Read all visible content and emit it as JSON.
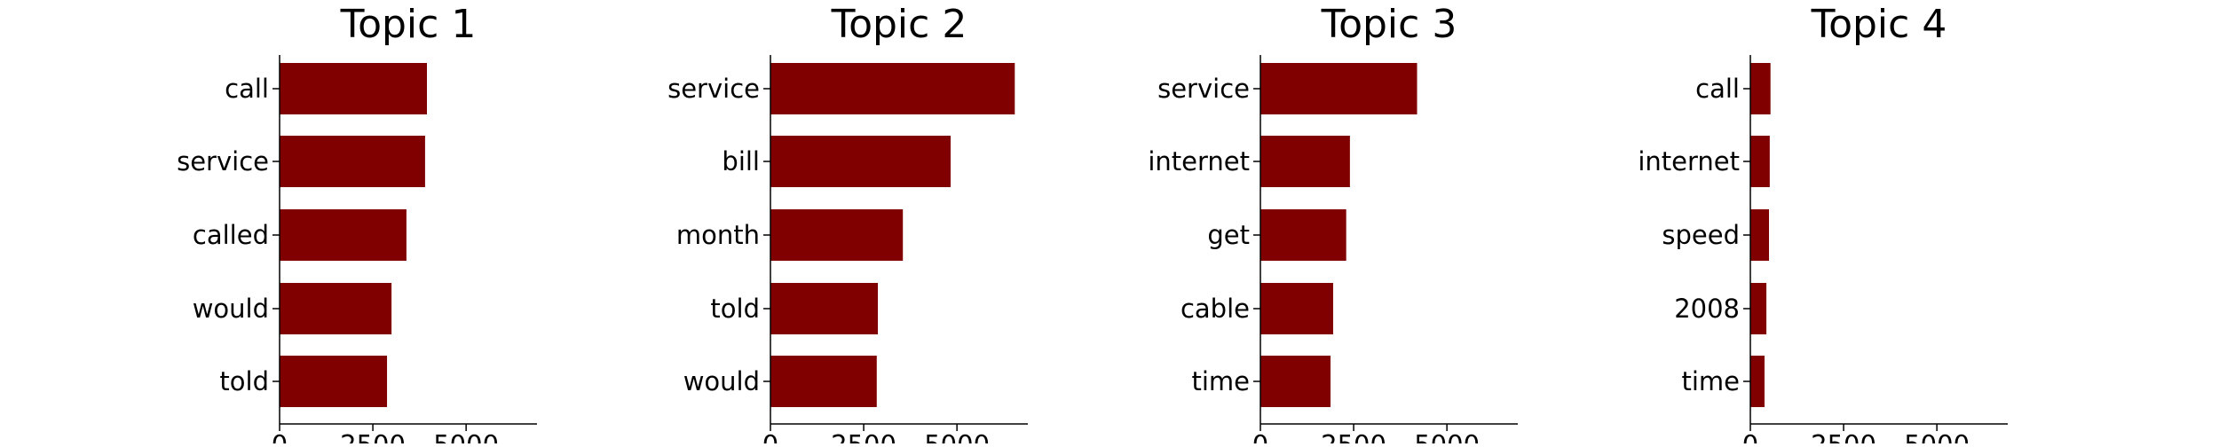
{
  "chart_data": [
    {
      "type": "bar",
      "orientation": "horizontal",
      "title": "Topic 1",
      "categories": [
        "call",
        "service",
        "called",
        "would",
        "told"
      ],
      "values": [
        3950,
        3900,
        3400,
        3000,
        2880
      ],
      "xlim": [
        0,
        6900
      ],
      "xticks": [
        "0",
        "2500",
        "5000"
      ],
      "xlabel": "",
      "ylabel": "",
      "bar_color": "#800000",
      "grid": false
    },
    {
      "type": "bar",
      "orientation": "horizontal",
      "title": "Topic 2",
      "categories": [
        "service",
        "bill",
        "month",
        "told",
        "would"
      ],
      "values": [
        6550,
        4830,
        3550,
        2880,
        2850
      ],
      "xlim": [
        0,
        6900
      ],
      "xticks": [
        "0",
        "2500",
        "5000"
      ],
      "xlabel": "",
      "ylabel": "",
      "bar_color": "#800000",
      "grid": false
    },
    {
      "type": "bar",
      "orientation": "horizontal",
      "title": "Topic 3",
      "categories": [
        "service",
        "internet",
        "get",
        "cable",
        "time"
      ],
      "values": [
        4200,
        2400,
        2300,
        1950,
        1880
      ],
      "xlim": [
        0,
        6900
      ],
      "xticks": [
        "0",
        "2500",
        "5000"
      ],
      "xlabel": "",
      "ylabel": "",
      "bar_color": "#800000",
      "grid": false
    },
    {
      "type": "bar",
      "orientation": "horizontal",
      "title": "Topic 4",
      "categories": [
        "call",
        "internet",
        "speed",
        "2008",
        "time"
      ],
      "values": [
        540,
        520,
        500,
        430,
        380
      ],
      "xlim": [
        0,
        6900
      ],
      "xticks": [
        "0",
        "2500",
        "5000"
      ],
      "xlabel": "",
      "ylabel": "",
      "bar_color": "#800000",
      "grid": false
    }
  ]
}
